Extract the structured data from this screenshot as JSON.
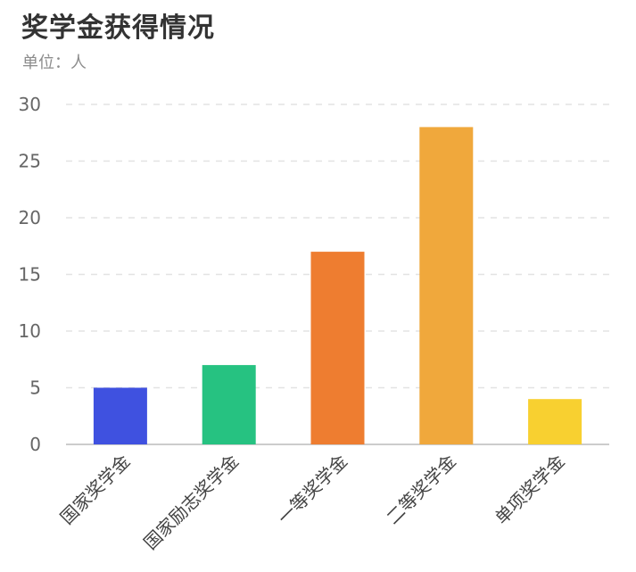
{
  "chart_data": {
    "type": "bar",
    "title": "奖学金获得情况",
    "subtitle": "单位：人",
    "categories": [
      "国家奖学金",
      "国家励志奖学金",
      "一等奖学金",
      "二等奖学金",
      "单项奖学金"
    ],
    "values": [
      5,
      7,
      17,
      28,
      4
    ],
    "colors": [
      "#3f51e0",
      "#26c281",
      "#ee7d30",
      "#f0a83c",
      "#f8d030"
    ],
    "ylim": [
      0,
      30
    ],
    "yticks": [
      0,
      5,
      10,
      15,
      20,
      25,
      30
    ],
    "ytick_labels": [
      "0",
      "5",
      "10",
      "15",
      "20",
      "25",
      "30"
    ],
    "xlabel": "",
    "ylabel": "",
    "grid": true,
    "legend": false
  }
}
